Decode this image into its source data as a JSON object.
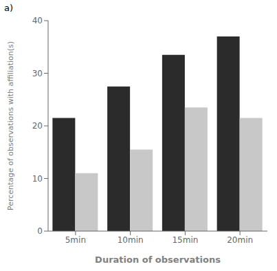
{
  "chart_data": {
    "type": "bar",
    "title": "a)",
    "categories": [
      "5min",
      "10min",
      "15min",
      "20min"
    ],
    "series": [
      {
        "color": "#2b2b2b",
        "values": [
          21.5,
          27.5,
          33.5,
          37.0
        ]
      },
      {
        "color": "#c8c8c8",
        "values": [
          11.0,
          15.5,
          23.5,
          21.5
        ]
      }
    ],
    "xlabel": "Duration of observations",
    "ylabel": "Percentage of observations with affiliation(s)",
    "ylim": [
      0,
      40
    ],
    "yticks": [
      0,
      10,
      20,
      30,
      40
    ],
    "grid": false
  }
}
